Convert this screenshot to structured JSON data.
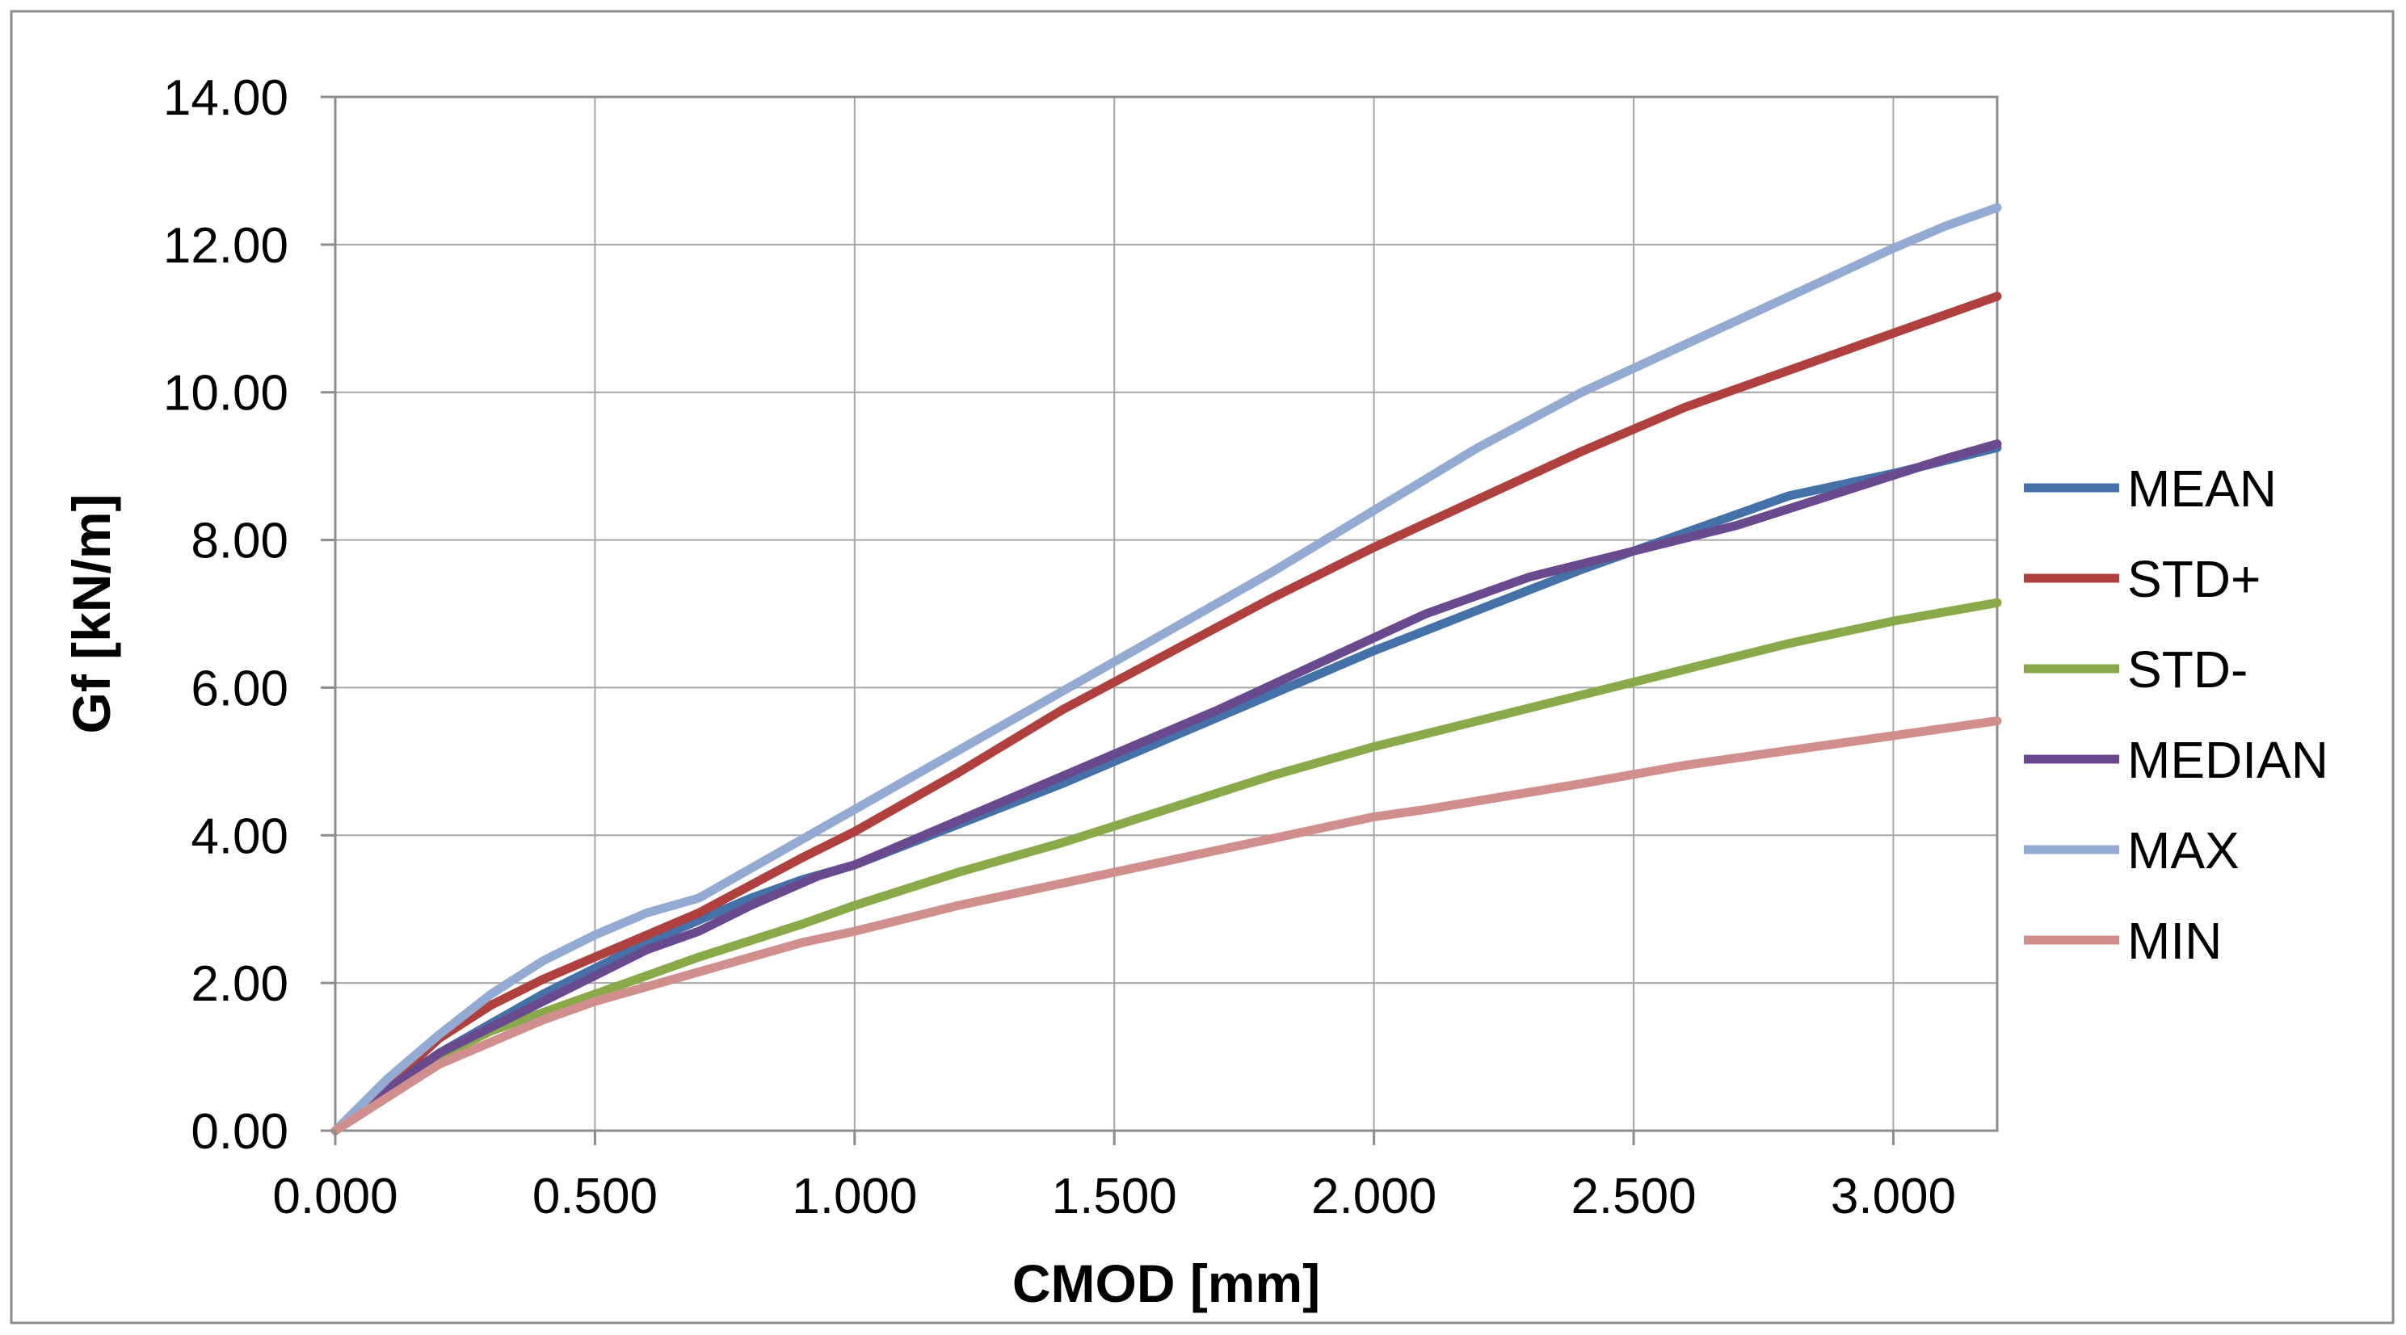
{
  "chart_data": {
    "type": "line",
    "title": "",
    "xlabel": "CMOD [mm]",
    "ylabel": "Gf [kN/m]",
    "xlim": [
      0,
      3.2
    ],
    "ylim": [
      0,
      14
    ],
    "grid": true,
    "legend_position": "right",
    "x_ticks": [
      0,
      0.5,
      1.0,
      1.5,
      2.0,
      2.5,
      3.0
    ],
    "x_tick_labels": [
      "0.000",
      "0.500",
      "1.000",
      "1.500",
      "2.000",
      "2.500",
      "3.000"
    ],
    "y_ticks": [
      0,
      2,
      4,
      6,
      8,
      10,
      12,
      14
    ],
    "y_tick_labels": [
      "0.00",
      "2.00",
      "4.00",
      "6.00",
      "8.00",
      "10.00",
      "12.00",
      "14.00"
    ],
    "series": [
      {
        "name": "MEAN",
        "color": "#4472A8",
        "x": [
          0,
          0.1,
          0.2,
          0.3,
          0.4,
          0.5,
          0.6,
          0.7,
          0.8,
          0.9,
          1.0,
          1.2,
          1.4,
          1.6,
          1.8,
          2.0,
          2.2,
          2.4,
          2.6,
          2.8,
          3.0,
          3.2
        ],
        "y": [
          0,
          0.55,
          1.05,
          1.45,
          1.85,
          2.2,
          2.55,
          2.85,
          3.15,
          3.4,
          3.6,
          4.15,
          4.7,
          5.3,
          5.9,
          6.5,
          7.05,
          7.6,
          8.1,
          8.6,
          8.9,
          9.25
        ]
      },
      {
        "name": "STD+",
        "color": "#B0403D",
        "x": [
          0,
          0.1,
          0.2,
          0.3,
          0.4,
          0.5,
          0.7,
          0.9,
          1.0,
          1.2,
          1.4,
          1.6,
          1.8,
          2.0,
          2.2,
          2.4,
          2.6,
          2.8,
          3.0,
          3.2
        ],
        "y": [
          0,
          0.6,
          1.25,
          1.7,
          2.05,
          2.35,
          2.95,
          3.7,
          4.05,
          4.85,
          5.7,
          6.45,
          7.2,
          7.9,
          8.55,
          9.2,
          9.8,
          10.3,
          10.8,
          11.3
        ]
      },
      {
        "name": "STD-",
        "color": "#8AAA4A",
        "x": [
          0,
          0.1,
          0.2,
          0.3,
          0.4,
          0.5,
          0.7,
          0.9,
          1.0,
          1.2,
          1.4,
          1.6,
          1.8,
          2.0,
          2.2,
          2.4,
          2.6,
          2.8,
          3.0,
          3.2
        ],
        "y": [
          0,
          0.5,
          1.0,
          1.35,
          1.6,
          1.85,
          2.35,
          2.8,
          3.05,
          3.5,
          3.9,
          4.35,
          4.8,
          5.2,
          5.55,
          5.9,
          6.25,
          6.6,
          6.9,
          7.15
        ]
      },
      {
        "name": "MEDIAN",
        "color": "#6A4A8E",
        "x": [
          0,
          0.1,
          0.2,
          0.3,
          0.4,
          0.5,
          0.6,
          0.7,
          0.8,
          0.93,
          1.0,
          1.1,
          1.3,
          1.5,
          1.7,
          1.9,
          2.1,
          2.3,
          2.5,
          2.7,
          2.9,
          3.1,
          3.2
        ],
        "y": [
          0,
          0.55,
          1.05,
          1.4,
          1.75,
          2.1,
          2.45,
          2.7,
          3.05,
          3.45,
          3.6,
          3.9,
          4.5,
          5.1,
          5.7,
          6.35,
          7.0,
          7.5,
          7.85,
          8.2,
          8.65,
          9.1,
          9.3
        ]
      },
      {
        "name": "MAX",
        "color": "#93ABD3",
        "x": [
          0,
          0.1,
          0.2,
          0.3,
          0.4,
          0.5,
          0.6,
          0.7,
          0.8,
          1.0,
          1.2,
          1.4,
          1.6,
          1.8,
          2.0,
          2.2,
          2.4,
          2.6,
          2.8,
          3.0,
          3.1,
          3.2
        ],
        "y": [
          0,
          0.7,
          1.3,
          1.85,
          2.3,
          2.65,
          2.95,
          3.15,
          3.55,
          4.35,
          5.15,
          5.95,
          6.75,
          7.55,
          8.4,
          9.25,
          10.0,
          10.65,
          11.3,
          11.95,
          12.25,
          12.5
        ]
      },
      {
        "name": "MIN",
        "color": "#D08E8C",
        "x": [
          0,
          0.1,
          0.2,
          0.3,
          0.4,
          0.5,
          0.7,
          0.9,
          1.0,
          1.2,
          1.4,
          1.6,
          1.8,
          2.0,
          2.1,
          2.4,
          2.6,
          2.8,
          3.0,
          3.2
        ],
        "y": [
          0,
          0.45,
          0.9,
          1.2,
          1.5,
          1.75,
          2.15,
          2.55,
          2.7,
          3.05,
          3.35,
          3.65,
          3.95,
          4.25,
          4.35,
          4.7,
          4.95,
          5.15,
          5.35,
          5.55
        ]
      }
    ]
  }
}
